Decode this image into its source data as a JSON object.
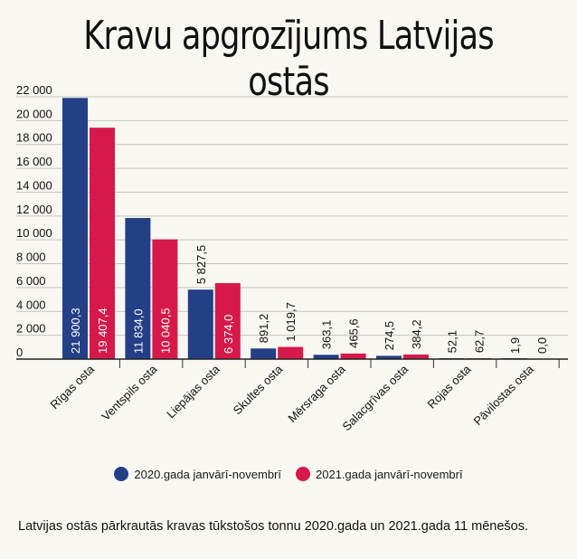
{
  "chart_data": {
    "type": "bar",
    "title": "Kravu apgrozījums Latvijas ostās",
    "categories": [
      "Rīgas osta",
      "Ventspils osta",
      "Liepājas osta",
      "Skultes osta",
      "Mērsraga osta",
      "Salacgrīvas osta",
      "Rojas osta",
      "Pāvilostas osta"
    ],
    "series": [
      {
        "name": "2020.gada janvārī-novembrī",
        "color": "#233f86",
        "values": [
          21900.3,
          11834.0,
          5827.5,
          891.2,
          363.1,
          274.5,
          52.1,
          1.9
        ],
        "labels": [
          "21 900,3",
          "11 834,0",
          "5 827,5",
          "891,2",
          "363,1",
          "274,5",
          "52,1",
          "1,9"
        ]
      },
      {
        "name": "2021.gada janvārī-novembrī",
        "color": "#d6194a",
        "values": [
          19407.4,
          10040.5,
          6374.0,
          1019.7,
          465.6,
          384.2,
          62.7,
          0.0
        ],
        "labels": [
          "19 407,4",
          "10 040,5",
          "6 374,0",
          "1 019,7",
          "465,6",
          "384,2",
          "62,7",
          "0,0"
        ]
      }
    ],
    "yticks": [
      0,
      2000,
      4000,
      6000,
      8000,
      10000,
      12000,
      14000,
      16000,
      18000,
      20000,
      22000
    ],
    "ytick_labels": [
      "0",
      "2 000",
      "4 000",
      "6 000",
      "8 000",
      "10 000",
      "12 000",
      "14 000",
      "16 000",
      "18 000",
      "20 000",
      "22 000"
    ],
    "ylim": [
      0,
      22000
    ],
    "grid": true,
    "legend_position": "bottom"
  },
  "caption": "Latvijas ostās pārkrautās kravas tūkstošos tonnu 2020.gada un 2021.gada 11 mēnešos."
}
